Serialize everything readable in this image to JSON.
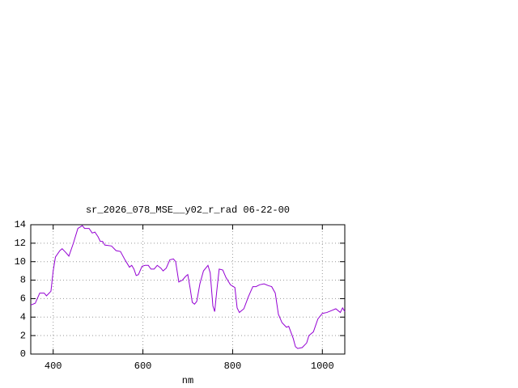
{
  "chart_data": {
    "type": "line",
    "title": "sr_2026_078_MSE__y02_r_rad 06-22-00",
    "xlabel": "nm",
    "x": [
      350,
      360,
      370,
      380,
      385,
      395,
      400,
      405,
      415,
      420,
      428,
      435,
      445,
      455,
      465,
      470,
      480,
      487,
      493,
      500,
      505,
      510,
      515,
      530,
      540,
      550,
      560,
      570,
      575,
      580,
      585,
      590,
      598,
      605,
      612,
      618,
      625,
      632,
      640,
      645,
      652,
      660,
      668,
      673,
      680,
      688,
      695,
      700,
      705,
      710,
      715,
      720,
      727,
      735,
      745,
      750,
      756,
      760,
      765,
      770,
      778,
      785,
      795,
      805,
      810,
      815,
      825,
      835,
      845,
      852,
      860,
      870,
      880,
      887,
      895,
      902,
      910,
      920,
      925,
      935,
      940,
      945,
      955,
      965,
      970,
      980,
      990,
      1000,
      1010,
      1020,
      1030,
      1040,
      1045,
      1050
    ],
    "values": [
      5.3,
      5.5,
      6.6,
      6.6,
      6.3,
      6.8,
      9.0,
      10.5,
      11.2,
      11.4,
      11.0,
      10.6,
      12.0,
      13.6,
      13.9,
      13.6,
      13.6,
      13.1,
      13.2,
      12.7,
      12.2,
      12.2,
      11.8,
      11.7,
      11.2,
      11.1,
      10.2,
      9.4,
      9.6,
      9.2,
      8.5,
      8.6,
      9.5,
      9.6,
      9.6,
      9.2,
      9.2,
      9.6,
      9.3,
      9.0,
      9.3,
      10.2,
      10.3,
      10.0,
      7.8,
      8.0,
      8.4,
      8.6,
      7.2,
      5.6,
      5.4,
      5.7,
      7.6,
      9.0,
      9.6,
      8.8,
      5.2,
      4.6,
      7.0,
      9.2,
      9.1,
      8.3,
      7.5,
      7.2,
      5.0,
      4.5,
      4.9,
      6.2,
      7.3,
      7.3,
      7.5,
      7.6,
      7.4,
      7.3,
      6.6,
      4.3,
      3.4,
      2.9,
      3.0,
      1.7,
      0.8,
      0.6,
      0.7,
      1.2,
      2.0,
      2.4,
      3.8,
      4.4,
      4.5,
      4.7,
      4.9,
      4.5,
      5.0,
      4.6
    ],
    "color": "#9400d3",
    "xlim": [
      350,
      1050
    ],
    "xticks": [
      400,
      600,
      800,
      1000
    ],
    "ylim": [
      0,
      14
    ],
    "yticks": [
      0,
      2,
      4,
      6,
      8,
      10,
      12,
      14
    ],
    "grid": true
  }
}
